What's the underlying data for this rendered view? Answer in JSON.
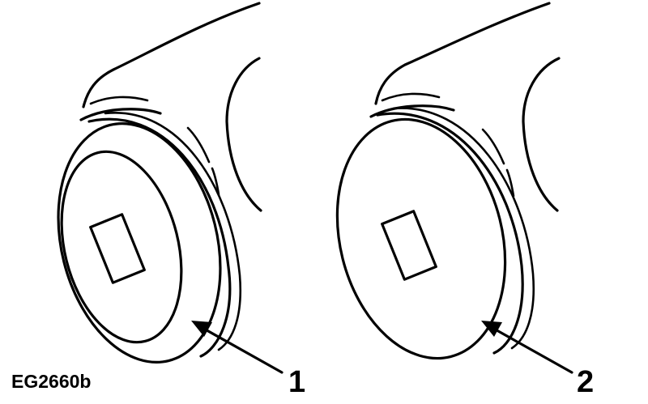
{
  "figure": {
    "code": "EG2660b",
    "callouts": [
      {
        "label": "1"
      },
      {
        "label": "2"
      }
    ]
  },
  "colors": {
    "line": "#000000",
    "background": "#ffffff"
  }
}
